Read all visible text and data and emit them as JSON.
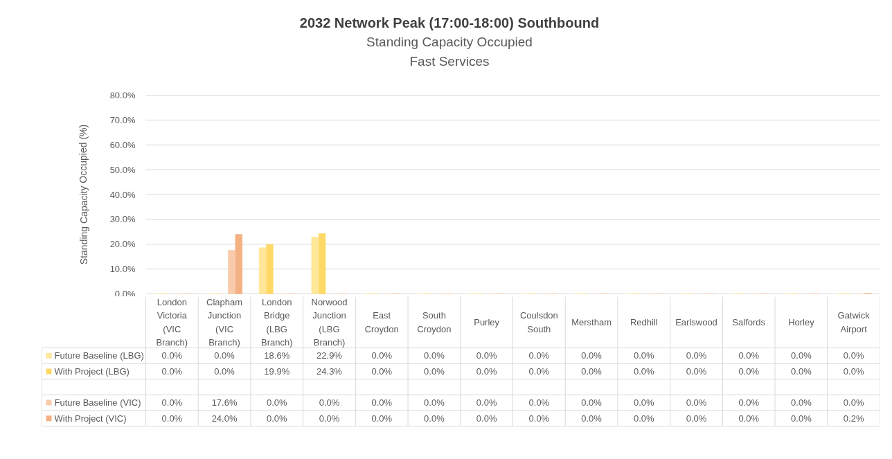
{
  "chart_data": {
    "type": "bar",
    "title": "2032 Network Peak (17:00-18:00) Southbound",
    "subtitle": "Standing Capacity Occupied\nFast Services",
    "ylabel": "Standing Capacity Occupied (%)",
    "categories": [
      "London Victoria (VIC Branch)",
      "Clapham Junction (VIC Branch)",
      "London Bridge (LBG Branch)",
      "Norwood Junction (LBG Branch)",
      "East Croydon",
      "South Croydon",
      "Purley",
      "Coulsdon South",
      "Merstham",
      "Redhill",
      "Earlswood",
      "Salfords",
      "Horley",
      "Gatwick Airport"
    ],
    "series": [
      {
        "name": "Future Baseline (LBG)",
        "color": "#ffe699",
        "values": [
          0,
          0,
          18.6,
          22.9,
          0,
          0,
          0,
          0,
          0,
          0,
          0,
          0,
          0,
          0
        ],
        "value_labels": [
          "0.0%",
          "0.0%",
          "18.6%",
          "22.9%",
          "0.0%",
          "0.0%",
          "0.0%",
          "0.0%",
          "0.0%",
          "0.0%",
          "0.0%",
          "0.0%",
          "0.0%",
          "0.0%"
        ]
      },
      {
        "name": "With Project (LBG)",
        "color": "#ffd966",
        "values": [
          0,
          0,
          19.9,
          24.3,
          0,
          0,
          0,
          0,
          0,
          0,
          0,
          0,
          0,
          0
        ],
        "value_labels": [
          "0.0%",
          "0.0%",
          "19.9%",
          "24.3%",
          "0.0%",
          "0.0%",
          "0.0%",
          "0.0%",
          "0.0%",
          "0.0%",
          "0.0%",
          "0.0%",
          "0.0%",
          "0.0%"
        ]
      },
      {
        "values": [
          null,
          null,
          null,
          null,
          null,
          null,
          null,
          null,
          null,
          null,
          null,
          null,
          null,
          null
        ]
      },
      {
        "name": "Future Baseline (VIC)",
        "color": "#f8cbad",
        "values": [
          0,
          17.6,
          0,
          0,
          0,
          0,
          0,
          0,
          0,
          0,
          0,
          0,
          0,
          0
        ],
        "value_labels": [
          "0.0%",
          "17.6%",
          "0.0%",
          "0.0%",
          "0.0%",
          "0.0%",
          "0.0%",
          "0.0%",
          "0.0%",
          "0.0%",
          "0.0%",
          "0.0%",
          "0.0%",
          "0.0%"
        ]
      },
      {
        "name": "With Project (VIC)",
        "color": "#f4b183",
        "values": [
          0,
          24.0,
          0,
          0,
          0,
          0,
          0,
          0,
          0,
          0,
          0,
          0,
          0,
          0.2
        ],
        "value_labels": [
          "0.0%",
          "24.0%",
          "0.0%",
          "0.0%",
          "0.0%",
          "0.0%",
          "0.0%",
          "0.0%",
          "0.0%",
          "0.0%",
          "0.0%",
          "0.0%",
          "0.0%",
          "0.2%"
        ]
      }
    ],
    "ylim": [
      0,
      80
    ],
    "yticks": [
      {
        "value": 0,
        "label": "0.0%"
      },
      {
        "value": 10,
        "label": "10.0%"
      },
      {
        "value": 20,
        "label": "20.0%"
      },
      {
        "value": 30,
        "label": "30.0%"
      },
      {
        "value": 40,
        "label": "40.0%"
      },
      {
        "value": 50,
        "label": "50.0%"
      },
      {
        "value": 60,
        "label": "60.0%"
      },
      {
        "value": 70,
        "label": "70.0%"
      },
      {
        "value": 80,
        "label": "80.0%"
      }
    ],
    "grid": "y",
    "legend": "bottom"
  }
}
